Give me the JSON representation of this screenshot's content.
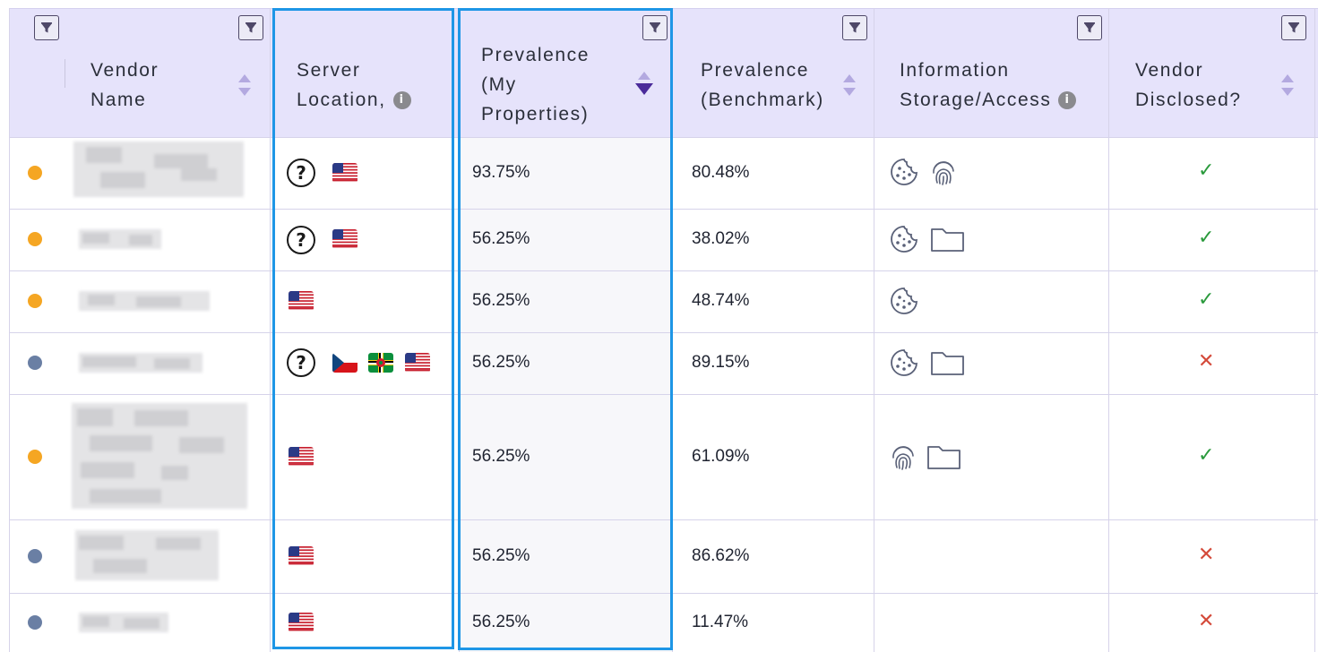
{
  "table": {
    "columns": [
      {
        "key": "vendor",
        "label": "Vendor\nName"
      },
      {
        "key": "server",
        "label": "Server\nLocation,"
      },
      {
        "key": "prev_my",
        "label": "Prevalence\n(My\nProperties)"
      },
      {
        "key": "prev_bench",
        "label": "Prevalence\n(Benchmark)"
      },
      {
        "key": "storage",
        "label": "Information\nStorage/Access"
      },
      {
        "key": "disclosed",
        "label": "Vendor\nDisclosed?"
      }
    ],
    "info_glyph": "i",
    "rows": [
      {
        "status": "orange",
        "unknown": true,
        "flags": [
          "us"
        ],
        "prev_my": "93.75%",
        "prev_bench": "80.48%",
        "storage": [
          "cookie-icon",
          "fingerprint-icon"
        ],
        "disclosed": "✓"
      },
      {
        "status": "orange",
        "unknown": true,
        "flags": [
          "us"
        ],
        "prev_my": "56.25%",
        "prev_bench": "38.02%",
        "storage": [
          "cookie-icon",
          "folder-icon"
        ],
        "disclosed": "✓"
      },
      {
        "status": "orange",
        "unknown": false,
        "flags": [
          "us"
        ],
        "prev_my": "56.25%",
        "prev_bench": "48.74%",
        "storage": [
          "cookie-icon"
        ],
        "disclosed": "✓"
      },
      {
        "status": "blue",
        "unknown": true,
        "flags": [
          "cz",
          "dm",
          "us"
        ],
        "prev_my": "56.25%",
        "prev_bench": "89.15%",
        "storage": [
          "cookie-icon",
          "folder-icon"
        ],
        "disclosed": "✕"
      },
      {
        "status": "orange",
        "unknown": false,
        "flags": [
          "us"
        ],
        "prev_my": "56.25%",
        "prev_bench": "61.09%",
        "storage": [
          "fingerprint-icon",
          "folder-icon"
        ],
        "disclosed": "✓"
      },
      {
        "status": "blue",
        "unknown": false,
        "flags": [
          "us"
        ],
        "prev_my": "56.25%",
        "prev_bench": "86.62%",
        "storage": [],
        "disclosed": "✕"
      },
      {
        "status": "blue",
        "unknown": false,
        "flags": [
          "us"
        ],
        "prev_my": "56.25%",
        "prev_bench": "11.47%",
        "storage": [],
        "disclosed": "✕"
      }
    ],
    "question_glyph": "?"
  },
  "colors": {
    "header_bg": "#e6e3fb",
    "highlight": "#1e96e6",
    "status_orange": "#f5a623",
    "status_blue": "#6a7fa4",
    "check": "#2a9a3c",
    "cross": "#d44a3a"
  }
}
